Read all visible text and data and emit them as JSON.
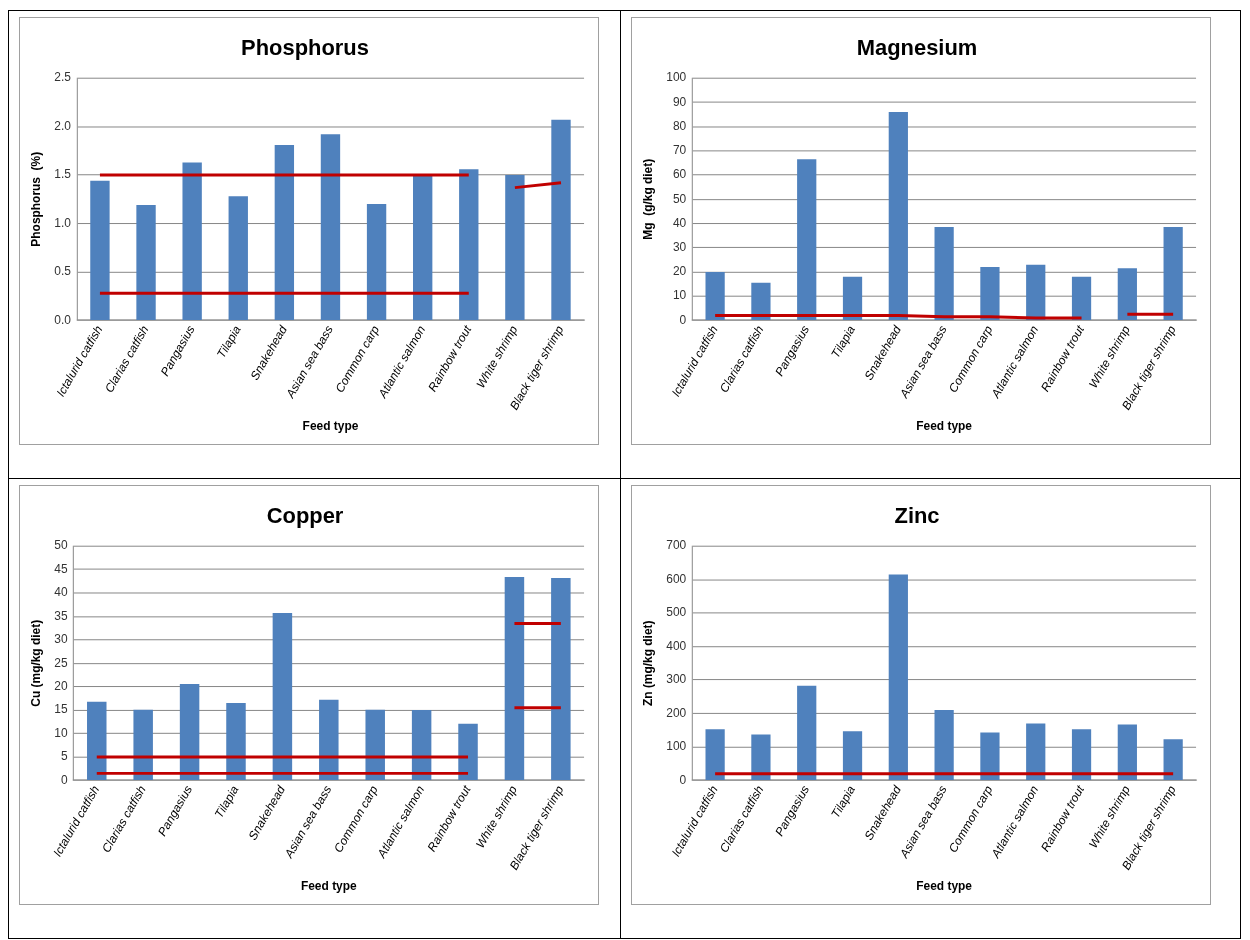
{
  "chart_data": [
    {
      "type": "bar",
      "title": "Phosphorus",
      "xlabel": "Feed type",
      "ylabel": "Phosphorus  (%)",
      "categories": [
        "Ictalurid catfish",
        "Clarias catfish",
        "Pangasius",
        "Tilapia",
        "Snakehead",
        "Asian sea bass",
        "Common carp",
        "Atlantic salmon",
        "Rainbow trout",
        "White shrimp",
        "Black tiger shrimp"
      ],
      "series": [
        {
          "color": "#4f81bd",
          "values": [
            1.44,
            1.19,
            1.63,
            1.28,
            1.81,
            1.92,
            1.2,
            1.5,
            1.56,
            1.5,
            2.07
          ]
        },
        {
          "type": "line",
          "color": "#c00000",
          "values": [
            1.5,
            1.5,
            1.5,
            1.5,
            1.5,
            1.5,
            1.5,
            1.5,
            1.5,
            null,
            null
          ]
        },
        {
          "type": "line",
          "color": "#c00000",
          "values": [
            0.28,
            0.28,
            0.28,
            0.28,
            0.28,
            0.28,
            0.28,
            0.28,
            0.28,
            null,
            null
          ]
        },
        {
          "type": "line",
          "color": "#c00000",
          "values": [
            null,
            null,
            null,
            null,
            null,
            null,
            null,
            null,
            null,
            1.37,
            1.42
          ]
        }
      ],
      "ylim": [
        0,
        2.5
      ],
      "yticks": [
        {
          "value": 0,
          "label": "0.0"
        },
        {
          "value": 0.5,
          "label": "0.5"
        },
        {
          "value": 1,
          "label": "1.0"
        },
        {
          "value": 1.5,
          "label": "1.5"
        },
        {
          "value": 2,
          "label": "2.0"
        },
        {
          "value": 2.5,
          "label": "2.5"
        }
      ],
      "grid": "y",
      "legend": false
    },
    {
      "type": "bar",
      "title": "Magnesium",
      "xlabel": "Feed type",
      "ylabel": "Mg  (g/kg diet)",
      "categories": [
        "Ictalurid catfish",
        "Clarias catfish",
        "Pangasius",
        "Tilapia",
        "Snakehead",
        "Asian sea bass",
        "Common carp",
        "Atlantic salmon",
        "Rainbow trout",
        "White shrimp",
        "Black tiger shrimp"
      ],
      "series": [
        {
          "color": "#4f81bd",
          "values": [
            20,
            15.5,
            66.5,
            18,
            86,
            38.5,
            22,
            23,
            18,
            21.5,
            38.5
          ]
        },
        {
          "type": "line",
          "color": "#c00000",
          "values": [
            2,
            2,
            2,
            2,
            2,
            1.5,
            1.5,
            1,
            1,
            null,
            null
          ]
        },
        {
          "type": "line",
          "color": "#c00000",
          "values": [
            null,
            null,
            null,
            null,
            null,
            null,
            null,
            null,
            null,
            2.5,
            2.5
          ]
        }
      ],
      "ylim": [
        0,
        100
      ],
      "yticks": [
        0,
        10,
        20,
        30,
        40,
        50,
        60,
        70,
        80,
        90,
        100
      ],
      "grid": "y",
      "legend": false
    },
    {
      "type": "bar",
      "title": "Copper",
      "xlabel": "Feed type",
      "ylabel": "Cu (mg/kg diet)",
      "categories": [
        "Ictalurid catfish",
        "Clarias catfish",
        "Pangasius",
        "Tilapia",
        "Snakehead",
        "Asian sea bass",
        "Common carp",
        "Atlantic salmon",
        "Rainbow trout",
        "White shrimp",
        "Black tiger shrimp"
      ],
      "series": [
        {
          "color": "#4f81bd",
          "values": [
            16.8,
            15.1,
            20.6,
            16.5,
            35.7,
            17.2,
            15.1,
            15,
            12.1,
            43.4,
            43.2
          ]
        },
        {
          "type": "line",
          "color": "#c00000",
          "values": [
            5,
            5,
            5,
            5,
            5,
            5,
            5,
            5,
            5,
            null,
            null
          ]
        },
        {
          "type": "line",
          "color": "#c00000",
          "values": [
            1.5,
            1.5,
            1.5,
            1.5,
            1.5,
            1.5,
            1.5,
            1.5,
            1.5,
            null,
            null
          ]
        },
        {
          "type": "line",
          "color": "#c00000",
          "values": [
            null,
            null,
            null,
            null,
            null,
            null,
            null,
            null,
            null,
            33.5,
            33.5
          ]
        },
        {
          "type": "line",
          "color": "#c00000",
          "values": [
            null,
            null,
            null,
            null,
            null,
            null,
            null,
            null,
            null,
            15.5,
            15.5
          ]
        }
      ],
      "ylim": [
        0,
        50
      ],
      "yticks": [
        0,
        5,
        10,
        15,
        20,
        25,
        30,
        35,
        40,
        45,
        50
      ],
      "grid": "y",
      "legend": false
    },
    {
      "type": "bar",
      "title": "Zinc",
      "xlabel": "Feed type",
      "ylabel": "Zn (mg/kg diet)",
      "categories": [
        "Ictalurid catfish",
        "Clarias catfish",
        "Pangasius",
        "Tilapia",
        "Snakehead",
        "Asian sea bass",
        "Common carp",
        "Atlantic salmon",
        "Rainbow trout",
        "White shrimp",
        "Black tiger shrimp"
      ],
      "series": [
        {
          "color": "#4f81bd",
          "values": [
            153,
            137,
            283,
            147,
            615,
            210,
            143,
            170,
            153,
            167,
            123
          ]
        },
        {
          "type": "line",
          "color": "#c00000",
          "values": [
            20,
            20,
            20,
            20,
            20,
            20,
            20,
            20,
            20,
            20,
            20
          ]
        }
      ],
      "ylim": [
        0,
        700
      ],
      "yticks": [
        0,
        100,
        200,
        300,
        400,
        500,
        600,
        700
      ],
      "grid": "y",
      "legend": false
    }
  ]
}
